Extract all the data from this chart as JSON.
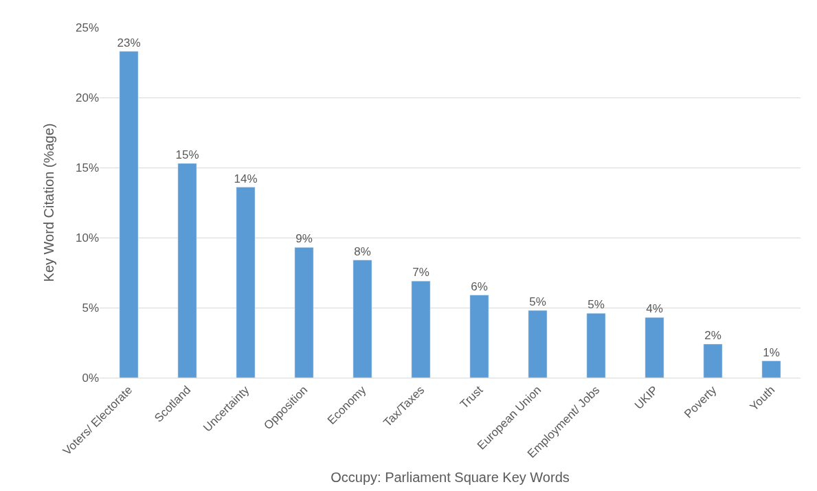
{
  "chart_data": {
    "type": "bar",
    "xlabel": "Occupy: Parliament Square Key Words",
    "ylabel": "Key Word Citation (%age)",
    "categories": [
      "Voters/ Electorate",
      "Scotland",
      "Uncertainty",
      "Opposition",
      "Economy",
      "Tax/Taxes",
      "Trust",
      "European Union",
      "Employment/ Jobs",
      "UKIP",
      "Poverty",
      "Youth"
    ],
    "values": [
      23.3,
      15.3,
      13.6,
      9.3,
      8.4,
      6.9,
      5.9,
      4.8,
      4.6,
      4.3,
      2.4,
      1.2
    ],
    "value_labels": [
      "23%",
      "15%",
      "14%",
      "9%",
      "8%",
      "7%",
      "6%",
      "5%",
      "5%",
      "4%",
      "2%",
      "1%"
    ],
    "color": "#5b9bd5",
    "ylim": [
      0,
      25
    ],
    "yticks": [
      {
        "value": 0,
        "label": "0%"
      },
      {
        "value": 5,
        "label": "5%"
      },
      {
        "value": 10,
        "label": "10%"
      },
      {
        "value": 15,
        "label": "15%"
      },
      {
        "value": 20,
        "label": "20%"
      },
      {
        "value": 25,
        "label": "25%"
      }
    ],
    "grid": "y"
  }
}
